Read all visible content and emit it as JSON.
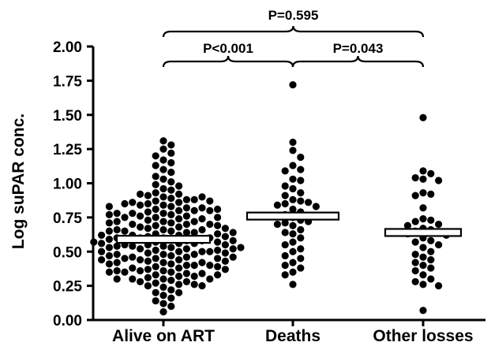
{
  "chart_data": {
    "type": "scatter",
    "title": "",
    "xlabel": "",
    "ylabel": "Log suPAR conc.",
    "ylim": [
      0,
      2
    ],
    "yticks": [
      "0.00",
      "0.25",
      "0.50",
      "0.75",
      "1.00",
      "1.25",
      "1.50",
      "1.75",
      "2.00"
    ],
    "categories": [
      "Alive on ART",
      "Deaths",
      "Other losses"
    ],
    "medians": [
      0.59,
      0.76,
      0.64
    ],
    "series": [
      {
        "category": "Alive on ART",
        "values": [
          1.31,
          1.28,
          1.25,
          1.22,
          1.2,
          1.17,
          1.15,
          1.13,
          1.1,
          1.08,
          1.05,
          1.03,
          1.01,
          0.99,
          0.98,
          0.96,
          0.95,
          0.93,
          0.92,
          0.91,
          0.9,
          0.89,
          0.88,
          0.87,
          0.86,
          0.85,
          0.84,
          0.83,
          0.82,
          0.81,
          0.8,
          0.79,
          0.78,
          0.77,
          0.76,
          0.75,
          0.74,
          0.73,
          0.72,
          0.71,
          0.7,
          0.69,
          0.68,
          0.67,
          0.66,
          0.65,
          0.64,
          0.63,
          0.62,
          0.61,
          0.6,
          0.59,
          0.58,
          0.57,
          0.56,
          0.55,
          0.54,
          0.53,
          0.52,
          0.51,
          0.5,
          0.49,
          0.48,
          0.47,
          0.46,
          0.45,
          0.44,
          0.43,
          0.42,
          0.41,
          0.4,
          0.39,
          0.38,
          0.37,
          0.36,
          0.35,
          0.34,
          0.33,
          0.32,
          0.31,
          0.3,
          0.29,
          0.28,
          0.27,
          0.26,
          0.25,
          0.24,
          0.22,
          0.2,
          0.18,
          0.16,
          0.14,
          0.12,
          0.1,
          0.06,
          0.92,
          0.88,
          0.84,
          0.8,
          0.76,
          0.72,
          0.68,
          0.64,
          0.6,
          0.56,
          0.52,
          0.48,
          0.44,
          0.4,
          0.36,
          0.32,
          0.28,
          0.86,
          0.82,
          0.78,
          0.74,
          0.7,
          0.66,
          0.62,
          0.58,
          0.54,
          0.5,
          0.46,
          0.42,
          0.38,
          0.34,
          0.3,
          0.26,
          0.9,
          0.85,
          0.8,
          0.75,
          0.7,
          0.65,
          0.6,
          0.55,
          0.5,
          0.45,
          0.4,
          0.35,
          0.3,
          0.25,
          0.2,
          0.78,
          0.72,
          0.66,
          0.6,
          0.54,
          0.48,
          0.42,
          0.36,
          0.3,
          0.87,
          0.81,
          0.75,
          0.69,
          0.63,
          0.57,
          0.51,
          0.45,
          0.39,
          0.33,
          0.71,
          0.65,
          0.59,
          0.53,
          0.47,
          0.41,
          0.35,
          0.83,
          0.77,
          0.67,
          0.61,
          0.55,
          0.49,
          0.43,
          0.37,
          0.62,
          0.56,
          0.5,
          0.44,
          0.58,
          0.52,
          0.46,
          0.64,
          0.57,
          0.53
        ]
      },
      {
        "category": "Deaths",
        "values": [
          1.72,
          1.3,
          1.24,
          1.19,
          1.13,
          1.1,
          1.09,
          1.03,
          1.02,
          0.98,
          0.96,
          0.93,
          0.91,
          0.88,
          0.87,
          0.86,
          0.85,
          0.84,
          0.83,
          0.81,
          0.79,
          0.77,
          0.75,
          0.73,
          0.72,
          0.71,
          0.7,
          0.69,
          0.66,
          0.64,
          0.63,
          0.6,
          0.57,
          0.55,
          0.52,
          0.5,
          0.47,
          0.45,
          0.42,
          0.4,
          0.38,
          0.35,
          0.33,
          0.26
        ]
      },
      {
        "category": "Other losses",
        "values": [
          1.48,
          1.09,
          1.07,
          1.04,
          1.03,
          1.02,
          0.93,
          0.92,
          0.91,
          0.82,
          0.74,
          0.73,
          0.72,
          0.7,
          0.69,
          0.67,
          0.66,
          0.65,
          0.64,
          0.63,
          0.62,
          0.6,
          0.58,
          0.57,
          0.55,
          0.53,
          0.5,
          0.48,
          0.46,
          0.44,
          0.42,
          0.4,
          0.38,
          0.36,
          0.33,
          0.3,
          0.28,
          0.26,
          0.25,
          0.07
        ]
      }
    ],
    "comparisons": [
      {
        "from": "Alive on ART",
        "to": "Other losses",
        "label": "P=0.595"
      },
      {
        "from": "Alive on ART",
        "to": "Deaths",
        "label": "P<0.001"
      },
      {
        "from": "Deaths",
        "to": "Other losses",
        "label": "P=0.043"
      }
    ]
  }
}
